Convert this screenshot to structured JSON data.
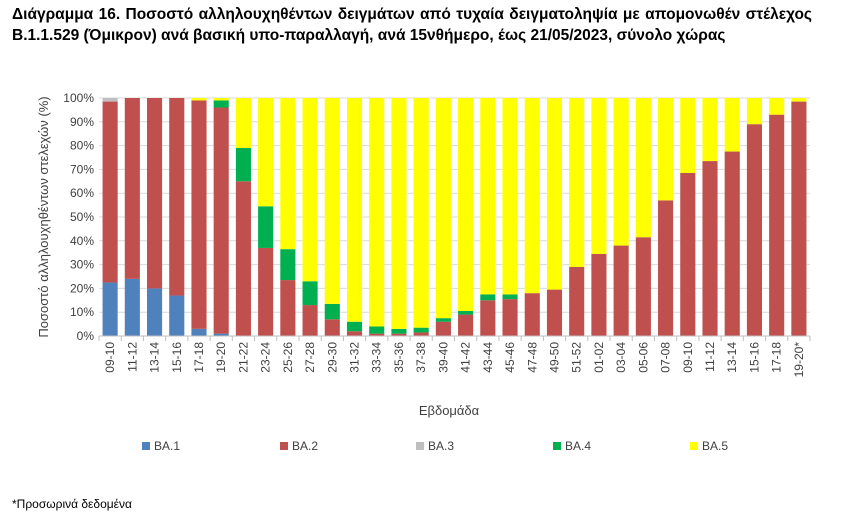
{
  "title": "Διάγραμμα 16. Ποσοστό αλληλουχηθέντων δειγμάτων από τυχαία δειγματοληψία με απομονωθέν στέλεχος Β.1.1.529 (Όμικρον) ανά βασική υπο-παραλλαγή, ανά 15νθήμερο, έως 21/05/2023, σύνολο χώρας",
  "footnote": "*Προσωρινά δεδομένα",
  "chart_data": {
    "type": "bar",
    "stacked": true,
    "xlabel": "Εβδομάδα",
    "ylabel": "Ποσοστό αλληλουχηθέντων στελεχών (%)",
    "ylim": [
      0,
      100
    ],
    "y_ticks": [
      "0%",
      "10%",
      "20%",
      "30%",
      "40%",
      "50%",
      "60%",
      "70%",
      "80%",
      "90%",
      "100%"
    ],
    "grid": true,
    "legend_position": "bottom",
    "categories": [
      "09-10",
      "11-12",
      "13-14",
      "15-16",
      "17-18",
      "19-20",
      "21-22",
      "23-24",
      "25-26",
      "27-28",
      "29-30",
      "31-32",
      "33-34",
      "35-36",
      "37-38",
      "39-40",
      "41-42",
      "43-44",
      "45-46",
      "47-48",
      "49-50",
      "51-52",
      "01-02",
      "03-04",
      "05-06",
      "07-08",
      "09-10",
      "11-12",
      "13-14",
      "15-16",
      "17-18",
      "19-20*"
    ],
    "series": [
      {
        "name": "BA.1",
        "color": "#4F81BD",
        "values": [
          22.5,
          24,
          20,
          17,
          3,
          1,
          0,
          0,
          0,
          0,
          0,
          0,
          0,
          0,
          0,
          0,
          0,
          0,
          0,
          0,
          0,
          0,
          0,
          0,
          0,
          0,
          0,
          0,
          0,
          0,
          0,
          0
        ]
      },
      {
        "name": "BA.2",
        "color": "#C0504D",
        "values": [
          76,
          76,
          80,
          83,
          96,
          95,
          65,
          37,
          23.5,
          13,
          7,
          2,
          1,
          1,
          1.5,
          6,
          9,
          15,
          15.5,
          18,
          19.5,
          29,
          34.5,
          38,
          41.5,
          57,
          68.5,
          73.5,
          77.5,
          89,
          93,
          98.5
        ]
      },
      {
        "name": "BA.3",
        "color": "#BFBFBF",
        "values": [
          1.5,
          0,
          0,
          0,
          0,
          0,
          0,
          0,
          0,
          0,
          0,
          0,
          0,
          0,
          0,
          0,
          0,
          0,
          0,
          0,
          0,
          0,
          0,
          0,
          0,
          0,
          0,
          0,
          0,
          0,
          0,
          0
        ]
      },
      {
        "name": "BA.4",
        "color": "#00B050",
        "values": [
          0,
          0,
          0,
          0,
          0,
          3,
          14,
          17.5,
          13,
          10,
          6.5,
          4,
          3,
          2,
          2,
          1.5,
          1.5,
          2.5,
          2,
          0,
          0,
          0,
          0,
          0,
          0,
          0,
          0,
          0,
          0,
          0,
          0,
          0
        ]
      },
      {
        "name": "BA.5",
        "color": "#FFFF00",
        "values": [
          0,
          0,
          0,
          0,
          1,
          1,
          21,
          45.5,
          63.5,
          77,
          86.5,
          94,
          96,
          97,
          96.5,
          92.5,
          89.5,
          82.5,
          82.5,
          82,
          80.5,
          71,
          65.5,
          62,
          58.5,
          43,
          31.5,
          26.5,
          22.5,
          11,
          7,
          1.5
        ]
      }
    ]
  }
}
